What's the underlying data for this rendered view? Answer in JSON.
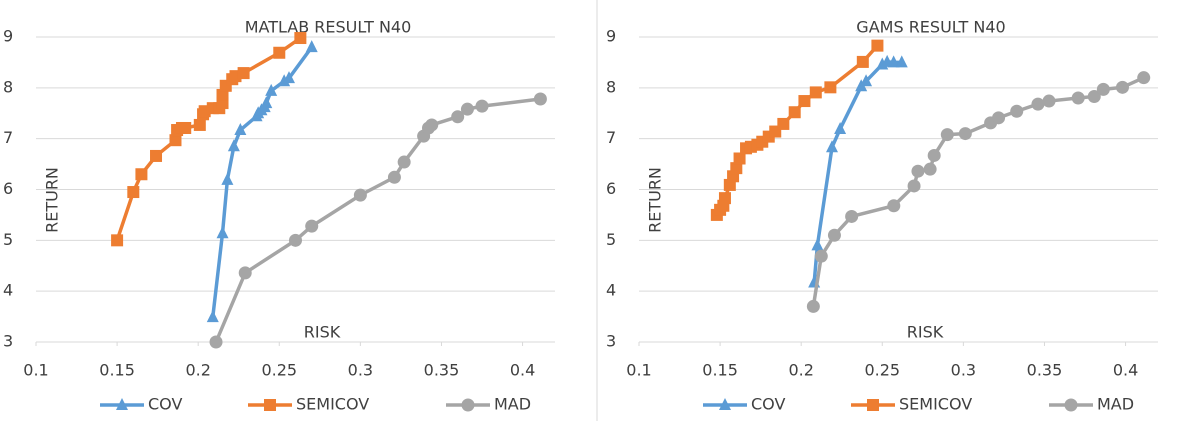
{
  "chart_data": [
    {
      "type": "line",
      "title": "MATLAB RESULT N40",
      "x_label": "RISK",
      "y_label": "RETURN",
      "xlim": [
        0.1,
        0.42
      ],
      "xticks": [
        0.1,
        0.15,
        0.2,
        0.25,
        0.3,
        0.35,
        0.4
      ],
      "ylim": [
        3,
        9
      ],
      "yticks": [
        3,
        4,
        5,
        6,
        7,
        8,
        9
      ],
      "grid": true,
      "legend": "bottom",
      "series": [
        {
          "name": "COV",
          "color": "#5b9bd5",
          "marker": "triangle",
          "x": [
            0.209,
            0.215,
            0.218,
            0.222,
            0.226,
            0.236,
            0.237,
            0.239,
            0.241,
            0.242,
            0.245,
            0.253,
            0.256,
            0.27
          ],
          "values": [
            3.49,
            5.14,
            6.19,
            6.85,
            7.17,
            7.44,
            7.5,
            7.56,
            7.62,
            7.7,
            7.94,
            8.13,
            8.19,
            8.8
          ]
        },
        {
          "name": "SEMICOV",
          "color": "#ed7d31",
          "marker": "square",
          "x": [
            0.15,
            0.16,
            0.165,
            0.174,
            0.186,
            0.187,
            0.19,
            0.192,
            0.201,
            0.203,
            0.204,
            0.209,
            0.213,
            0.215,
            0.215,
            0.217,
            0.221,
            0.223,
            0.228,
            0.25,
            0.263
          ],
          "values": [
            5.0,
            5.95,
            6.3,
            6.66,
            6.97,
            7.17,
            7.21,
            7.21,
            7.27,
            7.48,
            7.54,
            7.6,
            7.6,
            7.7,
            7.86,
            8.04,
            8.17,
            8.23,
            8.29,
            8.69,
            8.98
          ]
        },
        {
          "name": "MAD",
          "color": "#a5a5a5",
          "marker": "circle",
          "x": [
            0.211,
            0.229,
            0.26,
            0.27,
            0.3,
            0.321,
            0.327,
            0.339,
            0.342,
            0.344,
            0.36,
            0.366,
            0.375,
            0.411
          ],
          "values": [
            3.0,
            4.36,
            5.0,
            5.28,
            5.89,
            6.24,
            6.54,
            7.05,
            7.21,
            7.27,
            7.43,
            7.58,
            7.64,
            7.78
          ]
        }
      ]
    },
    {
      "type": "line",
      "title": "GAMS RESULT N40",
      "x_label": "RISK",
      "y_label": "RETURN",
      "xlim": [
        0.1,
        0.42
      ],
      "xticks": [
        0.1,
        0.15,
        0.2,
        0.25,
        0.3,
        0.35,
        0.4
      ],
      "ylim": [
        3,
        9
      ],
      "yticks": [
        3,
        4,
        5,
        6,
        7,
        8,
        9
      ],
      "grid": true,
      "legend": "bottom",
      "series": [
        {
          "name": "COV",
          "color": "#5b9bd5",
          "marker": "triangle",
          "x": [
            0.208,
            0.21,
            0.219,
            0.224,
            0.237,
            0.24,
            0.25,
            0.253,
            0.257,
            0.262
          ],
          "values": [
            4.17,
            4.9,
            6.83,
            7.19,
            8.03,
            8.13,
            8.46,
            8.51,
            8.5,
            8.5
          ]
        },
        {
          "name": "SEMICOV",
          "color": "#ed7d31",
          "marker": "square",
          "x": [
            0.148,
            0.15,
            0.152,
            0.153,
            0.156,
            0.158,
            0.16,
            0.162,
            0.166,
            0.169,
            0.173,
            0.176,
            0.18,
            0.184,
            0.189,
            0.196,
            0.202,
            0.209,
            0.218,
            0.238,
            0.247
          ],
          "values": [
            5.5,
            5.6,
            5.68,
            5.83,
            6.09,
            6.26,
            6.42,
            6.61,
            6.81,
            6.84,
            6.88,
            6.94,
            7.04,
            7.14,
            7.29,
            7.52,
            7.74,
            7.91,
            8.01,
            8.51,
            8.83
          ]
        },
        {
          "name": "MAD",
          "color": "#a5a5a5",
          "marker": "circle",
          "x": [
            0.2075,
            0.2124,
            0.2205,
            0.2311,
            0.2571,
            0.2696,
            0.272,
            0.2795,
            0.282,
            0.2901,
            0.3012,
            0.3168,
            0.3217,
            0.3329,
            0.346,
            0.3528,
            0.3708,
            0.3807,
            0.3863,
            0.3981,
            0.4112
          ],
          "values": [
            3.7,
            4.69,
            5.1,
            5.47,
            5.68,
            6.07,
            6.36,
            6.4,
            6.67,
            7.08,
            7.1,
            7.31,
            7.41,
            7.54,
            7.68,
            7.74,
            7.8,
            7.83,
            7.97,
            8.01,
            8.2
          ]
        }
      ]
    }
  ]
}
